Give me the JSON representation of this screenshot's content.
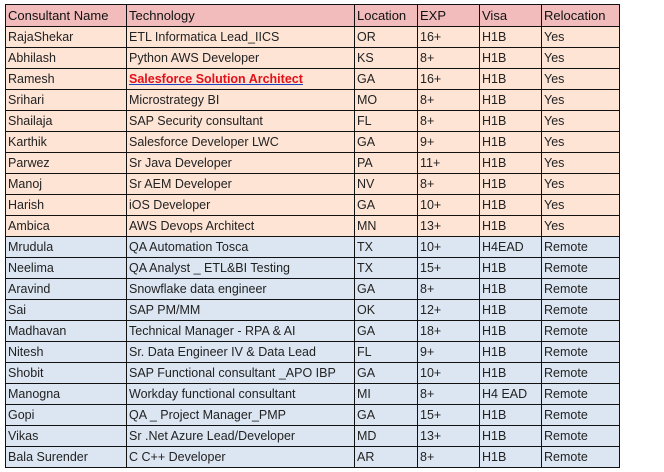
{
  "table": {
    "headers": [
      "Consultant Name",
      "Technology",
      "Location",
      "EXP",
      "Visa",
      "Relocation"
    ],
    "colors": {
      "header_bg": "#f2bcbc",
      "relocation_yes_bg": "#fde4d5",
      "remote_bg": "#dce6f2",
      "highlight_text": "#e3101a"
    },
    "rows": [
      {
        "name": "RajaShekar",
        "tech": "ETL Informatica Lead_IICS",
        "loc": "OR",
        "exp": "16+",
        "visa": "H1B",
        "reloc": "Yes"
      },
      {
        "name": "Abhilash",
        "tech": "Python AWS Developer",
        "loc": "KS",
        "exp": "8+",
        "visa": "H1B",
        "reloc": "Yes"
      },
      {
        "name": "Ramesh",
        "tech": "Salesforce Solution Architect",
        "loc": "GA",
        "exp": "16+",
        "visa": "H1B",
        "reloc": "Yes",
        "highlight": true
      },
      {
        "name": "Srihari",
        "tech": "Microstrategy BI",
        "loc": "MO",
        "exp": "8+",
        "visa": "H1B",
        "reloc": "Yes"
      },
      {
        "name": "Shailaja",
        "tech": "SAP Security consultant",
        "loc": "FL",
        "exp": "8+",
        "visa": "H1B",
        "reloc": "Yes"
      },
      {
        "name": "Karthik",
        "tech": "Salesforce Developer  LWC",
        "loc": "GA",
        "exp": "9+",
        "visa": "H1B",
        "reloc": "Yes"
      },
      {
        "name": "Parwez",
        "tech": "Sr Java Developer",
        "loc": "PA",
        "exp": "11+",
        "visa": "H1B",
        "reloc": "Yes"
      },
      {
        "name": "Manoj",
        "tech": "Sr AEM Developer",
        "loc": "NV",
        "exp": "8+",
        "visa": "H1B",
        "reloc": "Yes"
      },
      {
        "name": "Harish",
        "tech": "iOS Developer",
        "loc": "GA",
        "exp": "10+",
        "visa": "H1B",
        "reloc": "Yes"
      },
      {
        "name": "Ambica",
        "tech": "AWS Devops Architect",
        "loc": "MN",
        "exp": "13+",
        "visa": "H1B",
        "reloc": "Yes"
      },
      {
        "name": "Mrudula",
        "tech": "QA Automation Tosca",
        "loc": "TX",
        "exp": "10+",
        "visa": "H4EAD",
        "reloc": "Remote"
      },
      {
        "name": "Neelima",
        "tech": "QA Analyst _ ETL&BI Testing",
        "loc": "TX",
        "exp": "15+",
        "visa": "H1B",
        "reloc": "Remote"
      },
      {
        "name": "Aravind",
        "tech": "Snowflake data engineer",
        "loc": "GA",
        "exp": "8+",
        "visa": "H1B",
        "reloc": "Remote"
      },
      {
        "name": "Sai",
        "tech": "SAP PM/MM",
        "loc": "OK",
        "exp": "12+",
        "visa": "H1B",
        "reloc": "Remote"
      },
      {
        "name": "Madhavan",
        "tech": "Technical Manager - RPA & AI",
        "loc": "GA",
        "exp": "18+",
        "visa": "H1B",
        "reloc": "Remote"
      },
      {
        "name": "Nitesh",
        "tech": "Sr. Data Engineer IV & Data Lead",
        "loc": "FL",
        "exp": "9+",
        "visa": "H1B",
        "reloc": "Remote"
      },
      {
        "name": "Shobit",
        "tech": "SAP Functional consultant _APO IBP",
        "loc": "GA",
        "exp": "10+",
        "visa": "H1B",
        "reloc": "Remote"
      },
      {
        "name": "Manogna",
        "tech": "Workday functional consultant",
        "loc": "MI",
        "exp": "8+",
        "visa": "H4 EAD",
        "reloc": "Remote"
      },
      {
        "name": "Gopi",
        "tech": "QA _ Project Manager_PMP",
        "loc": "GA",
        "exp": "15+",
        "visa": "H1B",
        "reloc": "Remote"
      },
      {
        "name": "Vikas",
        "tech": "Sr .Net Azure Lead/Developer",
        "loc": "MD",
        "exp": "13+",
        "visa": "H1B",
        "reloc": "Remote"
      },
      {
        "name": "Bala Surender",
        "tech": "C C++ Developer",
        "loc": "AR",
        "exp": "8+",
        "visa": "H1B",
        "reloc": "Remote"
      }
    ]
  }
}
